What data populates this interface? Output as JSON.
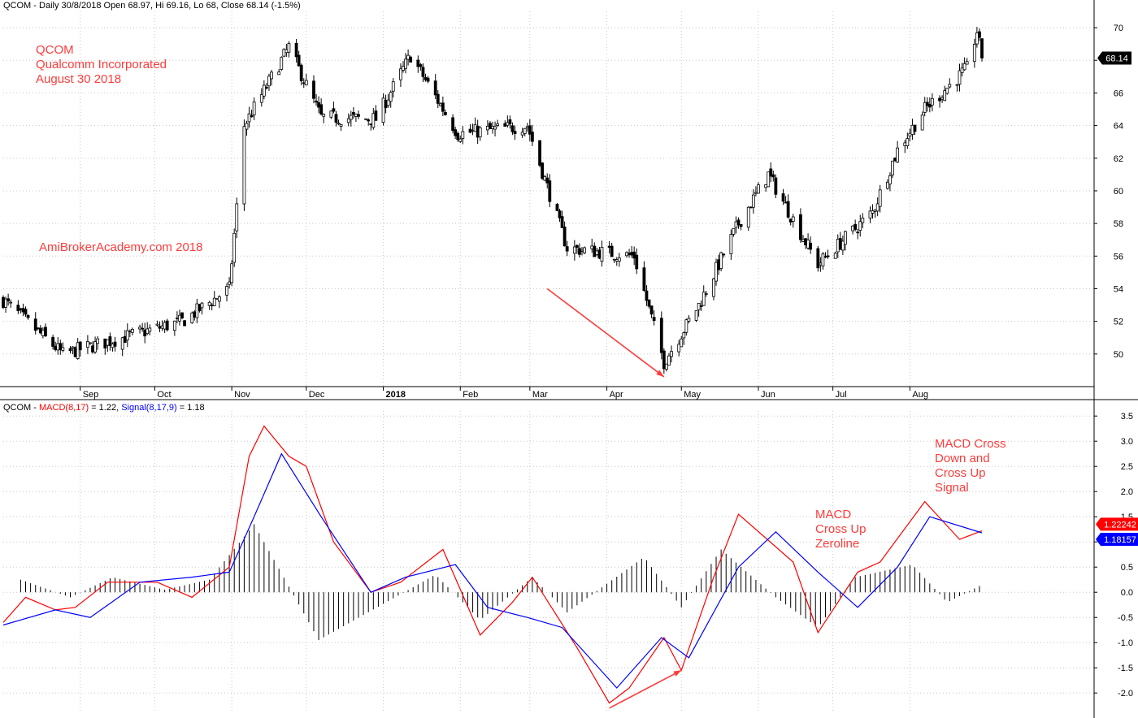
{
  "price_header": {
    "symbol": "QCOM",
    "text": " - Daily 30/8/2018 Open 68.97, Hi 69.16, Lo 68, Close 68.14 (-1.5%)"
  },
  "macd_header": {
    "symbol": "QCOM",
    "sep": " - ",
    "macd_label": "MACD(8,17)",
    "macd_value": " = 1.22, ",
    "signal_label": "Signal(8,17,9)",
    "signal_value": " = 1.18"
  },
  "annotations": {
    "company_lines": [
      "QCOM",
      "Qualcomm Incorporated",
      "August 30 2018"
    ],
    "watermark": "AmiBrokerAcademy.com  2018",
    "cross_zero": [
      "MACD",
      "Cross Up",
      "Zeroline"
    ],
    "cross_signal": [
      "MACD Cross",
      "Down and",
      "Cross Up",
      "Signal"
    ]
  },
  "colors": {
    "up_fill": "#ffffff",
    "down_fill": "#000000",
    "macd_line": "#ff0000",
    "signal_line": "#0000ff",
    "histogram": "#000000",
    "annotation": "#ff3b3b",
    "grid": "#c8c8c8"
  },
  "chart_data": [
    {
      "type": "candlestick",
      "title": "QCOM - Daily 30/8/2018 Open 68.97, Hi 69.16, Lo 68, Close 68.14 (-1.5%)",
      "ylim": [
        48,
        71
      ],
      "y_ticks": [
        50,
        52,
        54,
        56,
        58,
        60,
        62,
        64,
        66,
        68,
        70
      ],
      "x_tick_labels": [
        "Sep",
        "Oct",
        "Nov",
        "Dec",
        "2018",
        "Feb",
        "Mar",
        "Apr",
        "May",
        "Jun",
        "Jul",
        "Aug"
      ],
      "last_price_label": "68.14",
      "grid": true,
      "trend_arrow": {
        "from": [
          "2018-03-08",
          54.0
        ],
        "to": [
          "2018-04-24",
          48.6
        ]
      },
      "key_points": [
        {
          "x": "2017-08-01",
          "close": 53.3
        },
        {
          "x": "2017-08-25",
          "close": 50.0
        },
        {
          "x": "2017-10-12",
          "close": 52.0
        },
        {
          "x": "2017-10-31",
          "close": 54.0
        },
        {
          "x": "2017-11-06",
          "close": 64.0
        },
        {
          "x": "2017-11-24",
          "close": 68.8
        },
        {
          "x": "2017-12-07",
          "close": 64.5
        },
        {
          "x": "2017-12-29",
          "close": 64.4
        },
        {
          "x": "2018-01-12",
          "close": 68.3
        },
        {
          "x": "2018-01-31",
          "close": 63.5
        },
        {
          "x": "2018-02-28",
          "close": 64.0
        },
        {
          "x": "2018-03-16",
          "close": 56.5
        },
        {
          "x": "2018-04-12",
          "close": 56.0
        },
        {
          "x": "2018-04-24",
          "close": 49.5
        },
        {
          "x": "2018-05-08",
          "close": 53.0
        },
        {
          "x": "2018-05-24",
          "close": 58.0
        },
        {
          "x": "2018-06-05",
          "close": 61.0
        },
        {
          "x": "2018-06-25",
          "close": 55.5
        },
        {
          "x": "2018-07-17",
          "close": 58.7
        },
        {
          "x": "2018-07-27",
          "close": 62.5
        },
        {
          "x": "2018-08-07",
          "close": 65.0
        },
        {
          "x": "2018-08-24",
          "close": 67.5
        },
        {
          "x": "2018-08-28",
          "close": 69.8
        },
        {
          "x": "2018-08-30",
          "close": 68.14
        }
      ]
    },
    {
      "type": "line",
      "title": "QCOM - MACD(8,17) = 1.22, Signal(8,17,9) = 1.18",
      "ylim": [
        -2.4,
        3.6
      ],
      "y_ticks": [
        -2.0,
        -1.5,
        -1.0,
        -0.5,
        0.0,
        0.5,
        1.0,
        1.5,
        2.0,
        2.5,
        3.0,
        3.5
      ],
      "value_labels": [
        "1.22242",
        "1.18157"
      ],
      "trend_arrow": {
        "from": [
          "2018-04-02",
          -2.3
        ],
        "to": [
          "2018-05-01",
          -1.55
        ]
      },
      "series": [
        {
          "name": "MACD(8,17)",
          "color": "#ff0000",
          "points": [
            [
              "2017-08-01",
              -0.6
            ],
            [
              "2017-08-10",
              -0.1
            ],
            [
              "2017-08-22",
              -0.35
            ],
            [
              "2017-08-30",
              -0.3
            ],
            [
              "2017-09-12",
              0.2
            ],
            [
              "2017-10-02",
              0.2
            ],
            [
              "2017-10-16",
              -0.1
            ],
            [
              "2017-10-31",
              0.5
            ],
            [
              "2017-11-08",
              2.7
            ],
            [
              "2017-11-14",
              3.3
            ],
            [
              "2017-11-24",
              2.7
            ],
            [
              "2017-12-01",
              2.5
            ],
            [
              "2017-12-12",
              1.0
            ],
            [
              "2017-12-27",
              0.0
            ],
            [
              "2018-01-08",
              0.2
            ],
            [
              "2018-01-25",
              0.85
            ],
            [
              "2018-02-09",
              -0.85
            ],
            [
              "2018-02-22",
              -0.2
            ],
            [
              "2018-03-02",
              0.3
            ],
            [
              "2018-03-20",
              -1.1
            ],
            [
              "2018-04-02",
              -2.2
            ],
            [
              "2018-04-10",
              -1.9
            ],
            [
              "2018-04-24",
              -0.9
            ],
            [
              "2018-05-01",
              -1.55
            ],
            [
              "2018-05-14",
              0.3
            ],
            [
              "2018-05-24",
              1.55
            ],
            [
              "2018-06-15",
              0.6
            ],
            [
              "2018-06-25",
              -0.8
            ],
            [
              "2018-07-11",
              0.4
            ],
            [
              "2018-07-20",
              0.6
            ],
            [
              "2018-08-07",
              1.8
            ],
            [
              "2018-08-21",
              1.05
            ],
            [
              "2018-08-30",
              1.22
            ]
          ]
        },
        {
          "name": "Signal(8,17,9)",
          "color": "#0000ff",
          "points": [
            [
              "2017-08-01",
              -0.65
            ],
            [
              "2017-08-22",
              -0.35
            ],
            [
              "2017-09-05",
              -0.5
            ],
            [
              "2017-09-25",
              0.2
            ],
            [
              "2017-10-16",
              0.3
            ],
            [
              "2017-10-31",
              0.4
            ],
            [
              "2017-11-10",
              1.5
            ],
            [
              "2017-11-21",
              2.75
            ],
            [
              "2017-12-07",
              1.5
            ],
            [
              "2017-12-27",
              0.0
            ],
            [
              "2018-01-10",
              0.3
            ],
            [
              "2018-01-30",
              0.55
            ],
            [
              "2018-02-12",
              -0.3
            ],
            [
              "2018-02-28",
              -0.5
            ],
            [
              "2018-03-14",
              -0.7
            ],
            [
              "2018-04-05",
              -1.9
            ],
            [
              "2018-04-23",
              -0.9
            ],
            [
              "2018-05-04",
              -1.3
            ],
            [
              "2018-05-24",
              0.5
            ],
            [
              "2018-06-08",
              1.2
            ],
            [
              "2018-06-25",
              0.4
            ],
            [
              "2018-07-11",
              -0.3
            ],
            [
              "2018-07-27",
              0.5
            ],
            [
              "2018-08-09",
              1.5
            ],
            [
              "2018-08-30",
              1.18
            ]
          ]
        }
      ],
      "histogram": [
        [
          "2017-08-08",
          0.25
        ],
        [
          "2017-08-28",
          -0.1
        ],
        [
          "2017-09-14",
          0.3
        ],
        [
          "2017-10-05",
          0.05
        ],
        [
          "2017-10-23",
          0.25
        ],
        [
          "2017-11-10",
          1.35
        ],
        [
          "2017-12-06",
          -0.95
        ],
        [
          "2018-01-22",
          0.35
        ],
        [
          "2018-02-09",
          -0.55
        ],
        [
          "2018-03-02",
          0.3
        ],
        [
          "2018-03-16",
          -0.4
        ],
        [
          "2018-04-16",
          0.7
        ],
        [
          "2018-05-01",
          -0.3
        ],
        [
          "2018-05-17",
          0.85
        ],
        [
          "2018-06-08",
          -0.1
        ],
        [
          "2018-06-25",
          -0.7
        ],
        [
          "2018-07-10",
          0.3
        ],
        [
          "2018-08-02",
          0.55
        ],
        [
          "2018-08-16",
          -0.2
        ],
        [
          "2018-08-30",
          0.15
        ]
      ]
    }
  ]
}
